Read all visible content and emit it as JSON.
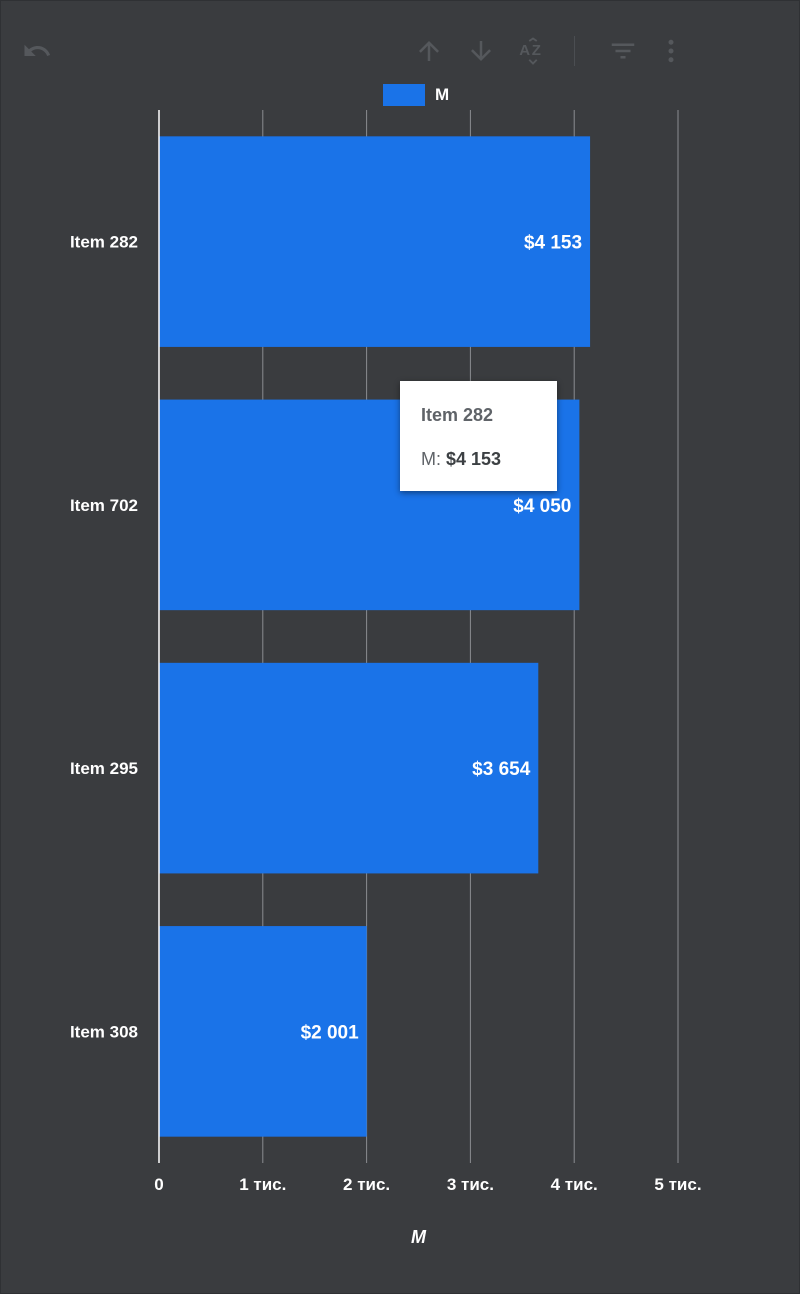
{
  "toolbar": {
    "icons": [
      "undo-icon",
      "sort-ascending-icon",
      "sort-descending-icon",
      "sort-alphabetical-icon",
      "filter-icon",
      "more-vert-icon"
    ]
  },
  "legend": {
    "label": "M",
    "color": "#1a73e8"
  },
  "tooltip": {
    "title": "Item 282",
    "series_label": "M:",
    "value": "$4 153"
  },
  "colors": {
    "background": "#3a3c3f",
    "bar": "#1a73e8",
    "gridline": "#8a8d91"
  },
  "chart_data": {
    "type": "bar",
    "orientation": "horizontal",
    "categories": [
      "Item 282",
      "Item 702",
      "Item 295",
      "Item 308"
    ],
    "series": [
      {
        "name": "M",
        "values": [
          4153,
          4050,
          3654,
          2001
        ]
      }
    ],
    "value_labels": [
      "$4 153",
      "$4 050",
      "$3 654",
      "$2 001"
    ],
    "x_ticks": [
      0,
      1000,
      2000,
      3000,
      4000,
      5000
    ],
    "x_tick_labels": [
      "0",
      "1 тис.",
      "2 тис.",
      "3 тис.",
      "4 тис.",
      "5 тис."
    ],
    "xlim": [
      0,
      5000
    ],
    "xlabel": "M",
    "ylabel": "",
    "grid": true,
    "legend_position": "top"
  }
}
